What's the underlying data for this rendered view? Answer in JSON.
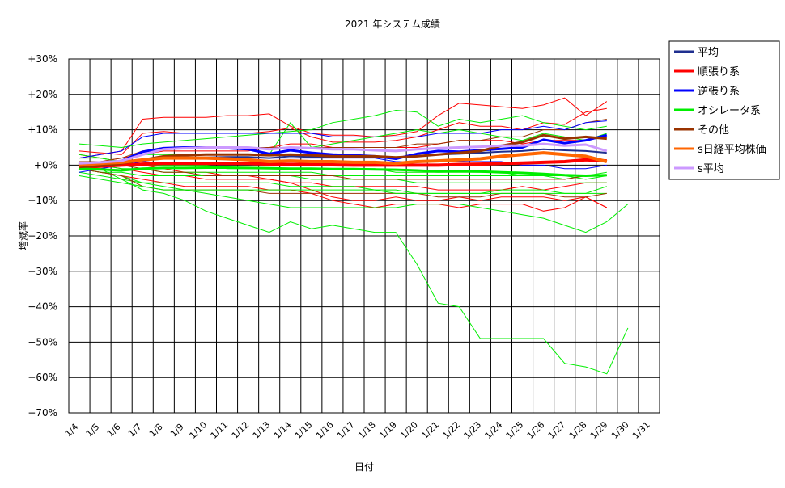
{
  "chart_data": {
    "type": "line",
    "title": "2021 年システム成績",
    "xlabel": "日付",
    "ylabel": "増減率",
    "ylim": [
      -70,
      30
    ],
    "yticks": [
      {
        "value": 30,
        "label": "+30%"
      },
      {
        "value": 20,
        "label": "+20%"
      },
      {
        "value": 10,
        "label": "+10%"
      },
      {
        "value": 0,
        "label": "+0%"
      },
      {
        "value": -10,
        "label": "−10%"
      },
      {
        "value": -20,
        "label": "−20%"
      },
      {
        "value": -30,
        "label": "−30%"
      },
      {
        "value": -40,
        "label": "−40%"
      },
      {
        "value": -50,
        "label": "−50%"
      },
      {
        "value": -60,
        "label": "−60%"
      },
      {
        "value": -70,
        "label": "−70%"
      }
    ],
    "categories": [
      "1/4",
      "1/5",
      "1/6",
      "1/7",
      "1/8",
      "1/9",
      "1/10",
      "1/11",
      "1/12",
      "1/13",
      "1/14",
      "1/15",
      "1/16",
      "1/17",
      "1/18",
      "1/19",
      "1/20",
      "1/21",
      "1/22",
      "1/23",
      "1/24",
      "1/25",
      "1/26",
      "1/27",
      "1/28",
      "1/29",
      "1/30",
      "1/31"
    ],
    "grid": true,
    "legend_position": "right",
    "legend": [
      {
        "label": "平均",
        "color": "#1f2f8f"
      },
      {
        "label": "順張り系",
        "color": "#ff0000"
      },
      {
        "label": "逆張り系",
        "color": "#0000ff"
      },
      {
        "label": "オシレータ系",
        "color": "#00ee00"
      },
      {
        "label": "その他",
        "color": "#993300"
      },
      {
        "label": "s日経平均株価",
        "color": "#ff6600"
      },
      {
        "label": "s平均",
        "color": "#cc99ff"
      }
    ],
    "series": [
      {
        "name": "平均",
        "color": "#1f2f8f",
        "width": 2,
        "values": [
          0,
          0.3,
          0.8,
          1.5,
          2.0,
          2.2,
          2.2,
          2.3,
          2.3,
          2.0,
          2.5,
          2.3,
          2.3,
          2.2,
          2.2,
          2.0,
          2.5,
          3.0,
          3.2,
          3.5,
          3.8,
          4.0,
          4.5,
          4.2,
          4.0,
          3.5,
          null,
          null
        ]
      },
      {
        "name": "順張り系",
        "color": "#ff0000",
        "width": 4,
        "values": [
          -0.5,
          -0.3,
          0,
          0.3,
          0.5,
          0.5,
          0.5,
          0.5,
          0.5,
          0.3,
          0.2,
          0.2,
          0.1,
          0,
          0,
          0,
          0,
          0,
          0.2,
          0.3,
          0.5,
          0.6,
          0.8,
          1.0,
          1.5,
          1.2,
          null,
          null
        ]
      },
      {
        "name": "逆張り系",
        "color": "#0000ff",
        "width": 3,
        "values": [
          0.3,
          0.5,
          1.2,
          3.8,
          4.8,
          5.0,
          5.0,
          4.8,
          4.5,
          3.2,
          4.2,
          3.5,
          3.0,
          2.8,
          2.5,
          1.8,
          3.2,
          4.0,
          3.8,
          4.2,
          4.6,
          5.0,
          7.2,
          6.2,
          7.0,
          8.5,
          null,
          null
        ]
      },
      {
        "name": "オシレータ系",
        "color": "#00ee00",
        "width": 3,
        "values": [
          -1.0,
          -1.2,
          -1.5,
          -1.0,
          -0.8,
          -0.8,
          -0.7,
          -0.7,
          -0.8,
          -0.9,
          -1.0,
          -1.0,
          -1.1,
          -1.1,
          -1.2,
          -1.3,
          -1.5,
          -1.8,
          -1.7,
          -1.8,
          -2.0,
          -2.2,
          -2.5,
          -2.8,
          -3.0,
          -2.8,
          null,
          null
        ]
      },
      {
        "name": "その他",
        "color": "#993300",
        "width": 3,
        "values": [
          -0.5,
          -0.2,
          0.5,
          1.5,
          2.5,
          2.8,
          3.0,
          3.0,
          3.0,
          2.8,
          3.0,
          2.8,
          2.5,
          2.5,
          2.5,
          2.2,
          2.5,
          3.0,
          3.5,
          4.0,
          5.5,
          6.5,
          8.5,
          7.5,
          8.0,
          7.5,
          null,
          null
        ]
      },
      {
        "name": "s日経平均株価",
        "color": "#ff6600",
        "width": 4,
        "values": [
          0,
          0.5,
          0.8,
          1.5,
          2.0,
          2.0,
          2.0,
          1.8,
          1.5,
          1.0,
          1.2,
          1.0,
          1.0,
          0.8,
          0.8,
          0.5,
          1.0,
          1.2,
          1.5,
          1.8,
          2.5,
          3.0,
          3.5,
          3.0,
          2.5,
          1.0,
          null,
          null
        ]
      },
      {
        "name": "s平均",
        "color": "#cc99ff",
        "width": 3,
        "values": [
          0.5,
          0.8,
          1.2,
          3.0,
          4.5,
          4.8,
          5.0,
          5.0,
          5.0,
          4.5,
          5.0,
          4.8,
          4.5,
          4.5,
          4.2,
          4.0,
          4.5,
          4.8,
          5.0,
          5.2,
          5.5,
          5.5,
          6.0,
          5.5,
          5.8,
          4.0,
          null,
          null
        ]
      }
    ],
    "individual_systems": [
      {
        "color": "#ff0000",
        "values": [
          2,
          3,
          4,
          13,
          13.5,
          13.5,
          13.5,
          14,
          14,
          14.5,
          11,
          9,
          8.5,
          8.5,
          8,
          8.5,
          9.5,
          14,
          17.5,
          17,
          16.5,
          16,
          17,
          19,
          14,
          18,
          null,
          null
        ]
      },
      {
        "color": "#ff0000",
        "values": [
          4,
          3.5,
          3,
          9,
          9.5,
          9,
          9,
          9,
          9,
          9.5,
          10.5,
          8,
          6.5,
          6.5,
          6.5,
          7,
          8,
          10,
          12,
          11,
          11,
          10,
          12,
          11.5,
          15,
          16,
          null,
          null
        ]
      },
      {
        "color": "#ff0000",
        "values": [
          3,
          2,
          1,
          0,
          -1,
          -2,
          -2,
          -3,
          -3,
          -4,
          -5,
          -7,
          -9,
          -10,
          -10,
          -9,
          -10,
          -10,
          -9,
          -10,
          -9,
          -9,
          -9,
          -10,
          -9,
          -12,
          null,
          null
        ]
      },
      {
        "color": "#ff0000",
        "values": [
          -1,
          -2,
          -3,
          -4,
          -5,
          -6,
          -6,
          -6,
          -6,
          -7,
          -7,
          -8,
          -10,
          -11,
          -12,
          -11,
          -11,
          -11,
          -12,
          -11,
          -11,
          -11,
          -13,
          -12,
          -9,
          -12,
          null,
          null
        ]
      },
      {
        "color": "#ff0000",
        "values": [
          1,
          0,
          -1,
          -2,
          -3,
          -3,
          -4,
          -4,
          -4,
          -4,
          -5,
          -5,
          -6,
          -6,
          -6,
          -6,
          -6,
          -7,
          -7,
          -7,
          -7,
          -6,
          -7,
          -6,
          -5,
          -5,
          null,
          null
        ]
      },
      {
        "color": "#ff0000",
        "values": [
          0,
          1,
          2,
          3,
          4,
          4,
          4,
          4,
          4,
          5,
          6,
          6,
          5,
          5,
          5,
          5,
          5,
          6,
          7,
          7,
          7,
          6,
          7,
          7,
          7,
          8,
          null,
          null
        ]
      },
      {
        "color": "#00ee00",
        "values": [
          0,
          -1,
          -4,
          -7,
          -8,
          -10,
          -13,
          -15,
          -17,
          -19,
          -16,
          -18,
          -17,
          -18,
          -19,
          -19,
          -28,
          -39,
          -40,
          -49,
          -49,
          -49,
          -49,
          -56,
          -57,
          -59,
          -46,
          null
        ]
      },
      {
        "color": "#00ee00",
        "values": [
          -1,
          -2,
          -3,
          -5,
          -6,
          -7,
          -8,
          -9,
          -10,
          -11,
          -12,
          -12,
          -12,
          -12,
          -12,
          -12,
          -11,
          -11,
          -11,
          -12,
          -13,
          -14,
          -15,
          -17,
          -19,
          -16,
          -11,
          null
        ]
      },
      {
        "color": "#00ee00",
        "values": [
          6,
          5.5,
          5,
          6,
          6.5,
          7,
          7.5,
          8,
          8.5,
          9,
          9.5,
          10,
          12,
          13,
          14,
          15.5,
          15,
          11,
          13,
          12,
          13,
          14,
          12,
          11,
          10,
          11,
          null,
          null
        ]
      },
      {
        "color": "#00ee00",
        "values": [
          2,
          2,
          1,
          3,
          3,
          3,
          3,
          3,
          3,
          3,
          12,
          5,
          6,
          7,
          8,
          9,
          10,
          9,
          10,
          9,
          8,
          7,
          9,
          8,
          7,
          9,
          null,
          null
        ]
      },
      {
        "color": "#00ee00",
        "values": [
          -2,
          -3,
          -4,
          -5,
          -5,
          -5,
          -5,
          -5,
          -5,
          -5,
          -6,
          -6,
          -6,
          -6,
          -7,
          -7,
          -8,
          -8,
          -8,
          -8,
          -7,
          -7,
          -7,
          -8,
          -8,
          -8,
          null,
          null
        ]
      },
      {
        "color": "#00ee00",
        "values": [
          -1,
          -2,
          -2,
          -3,
          -3,
          -3,
          -3,
          -3,
          -3,
          -3,
          -3,
          -4,
          -4,
          -4,
          -4,
          -4,
          -5,
          -5,
          -5,
          -5,
          -5,
          -5,
          -5,
          -5,
          -5,
          -5,
          null,
          null
        ]
      },
      {
        "color": "#00ee00",
        "values": [
          1,
          0,
          -1,
          -1,
          -2,
          -2,
          -2,
          -2,
          -2,
          -2,
          -2,
          -2,
          -3,
          -3,
          -3,
          -3,
          -3,
          -3,
          -3,
          -3,
          -3,
          -3,
          -3,
          -4,
          -3,
          -2,
          null,
          null
        ]
      },
      {
        "color": "#00ee00",
        "values": [
          3,
          2,
          1,
          0,
          0,
          0,
          0,
          -1,
          -1,
          -1,
          -1,
          -1,
          -1,
          -1,
          -1,
          -2,
          -2,
          -2,
          -2,
          -2,
          -2,
          -3,
          -3,
          -3,
          -4,
          -3,
          null,
          null
        ]
      },
      {
        "color": "#993300",
        "values": [
          -1,
          -2,
          -3,
          -6,
          -7,
          -7,
          -7,
          -7,
          -7,
          -8,
          -8,
          -8,
          -8,
          -8,
          -8,
          -8,
          -8,
          -9,
          -9,
          -9,
          -8,
          -8,
          -8,
          -9,
          -9,
          -8,
          null,
          null
        ]
      },
      {
        "color": "#993300",
        "values": [
          0,
          1,
          2,
          4,
          5,
          5,
          5,
          5,
          5,
          5,
          5,
          5,
          5,
          5,
          5,
          5,
          6,
          6,
          7,
          7,
          8,
          8,
          10,
          10,
          12,
          13,
          null,
          null
        ]
      },
      {
        "color": "#993300",
        "values": [
          1,
          1,
          0,
          -1,
          -2,
          -2,
          -3,
          -3,
          -3,
          -3,
          -3,
          -3,
          -3,
          -4,
          -4,
          -4,
          -4,
          -4,
          -4,
          -4,
          -4,
          -4,
          -4,
          -4,
          -3,
          -3,
          null,
          null
        ]
      },
      {
        "color": "#0000ff",
        "values": [
          2,
          3,
          4,
          8,
          9,
          9,
          9,
          9,
          9,
          9,
          9,
          9,
          8,
          8,
          8,
          8,
          8,
          9,
          9,
          9,
          10,
          10,
          11,
          10,
          12,
          12.5,
          null,
          null
        ]
      },
      {
        "color": "#0000ff",
        "values": [
          -2,
          -1,
          0,
          1,
          2,
          2,
          2,
          2,
          2,
          2,
          2,
          2,
          2,
          2,
          2,
          1,
          1,
          1,
          1,
          1,
          1,
          0,
          0,
          -1,
          -1,
          0,
          null,
          null
        ]
      },
      {
        "color": "#00ee00",
        "values": [
          -3,
          -4,
          -5,
          -6,
          -7,
          -7,
          -7,
          -7,
          -7,
          -7,
          -7,
          -7,
          -7,
          -7,
          -7,
          -8,
          -8,
          -8,
          -8,
          -8,
          -8,
          -8,
          -8,
          -8,
          -8,
          -6,
          null,
          null
        ]
      }
    ]
  }
}
